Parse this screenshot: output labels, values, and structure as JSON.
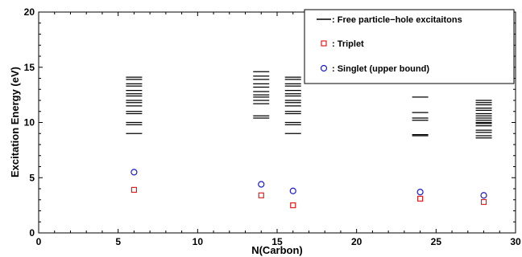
{
  "chart_data": {
    "type": "scatter",
    "title": "",
    "xlabel": "N(Carbon)",
    "ylabel": "Excitation Energy (eV)",
    "xlim": [
      0,
      30
    ],
    "ylim": [
      0,
      20
    ],
    "x_ticks": [
      "0",
      "5",
      "10",
      "15",
      "20",
      "25",
      "30"
    ],
    "y_ticks": [
      "0",
      "5",
      "10",
      "15",
      "20"
    ],
    "grid": false,
    "legend_position": "top-right",
    "colors": {
      "lines": "#000000",
      "triplet": "#e0201e",
      "singlet": "#1a1acc"
    },
    "series": [
      {
        "name": ": Free particle−hole excitaitons",
        "marker": "hline",
        "points": [
          {
            "x": 6,
            "energies": [
              9.0,
              9.8,
              10.0,
              10.8,
              11.0,
              11.5,
              11.8,
              12.0,
              12.4,
              12.6,
              12.9,
              13.3,
              13.5,
              13.9,
              14.1
            ]
          },
          {
            "x": 14,
            "energies": [
              10.4,
              10.6,
              11.7,
              12.0,
              12.3,
              12.5,
              12.8,
              13.2,
              13.5,
              13.9,
              14.2,
              14.6
            ]
          },
          {
            "x": 16,
            "energies": [
              9.0,
              9.8,
              10.0,
              10.8,
              11.0,
              11.5,
              11.8,
              12.0,
              12.4,
              12.6,
              12.9,
              13.3,
              13.5,
              13.9,
              14.1
            ]
          },
          {
            "x": 24,
            "energies": [
              8.8,
              8.9,
              10.2,
              10.4,
              10.9,
              12.3
            ]
          },
          {
            "x": 28,
            "energies": [
              8.6,
              8.8,
              9.1,
              9.3,
              9.7,
              9.9,
              10.0,
              10.2,
              10.4,
              10.6,
              10.8,
              11.1,
              11.3,
              11.6,
              11.8,
              12.0
            ]
          }
        ]
      },
      {
        "name": ": Triplet",
        "marker": "square",
        "x": [
          6,
          14,
          16,
          24,
          28
        ],
        "y": [
          3.9,
          3.4,
          2.5,
          3.1,
          2.8
        ]
      },
      {
        "name": ": Singlet (upper bound)",
        "marker": "circle",
        "x": [
          6,
          14,
          16,
          24,
          28
        ],
        "y": [
          5.5,
          4.4,
          3.8,
          3.7,
          3.4
        ]
      }
    ]
  }
}
